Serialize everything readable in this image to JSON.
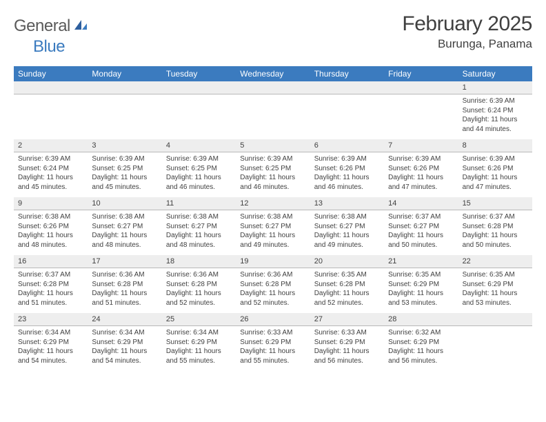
{
  "brand": {
    "part1": "General",
    "part2": "Blue"
  },
  "title": "February 2025",
  "location": "Burunga, Panama",
  "colors": {
    "header_bg": "#3b7bbf",
    "header_text": "#ffffff",
    "daynum_bg": "#eeeeee",
    "border": "#b8b8b8",
    "text": "#404040",
    "logo_gray": "#5a5a5a",
    "logo_blue": "#3b7bbf"
  },
  "day_names": [
    "Sunday",
    "Monday",
    "Tuesday",
    "Wednesday",
    "Thursday",
    "Friday",
    "Saturday"
  ],
  "weeks": [
    [
      {
        "n": "",
        "sr": "",
        "ss": "",
        "dl": ""
      },
      {
        "n": "",
        "sr": "",
        "ss": "",
        "dl": ""
      },
      {
        "n": "",
        "sr": "",
        "ss": "",
        "dl": ""
      },
      {
        "n": "",
        "sr": "",
        "ss": "",
        "dl": ""
      },
      {
        "n": "",
        "sr": "",
        "ss": "",
        "dl": ""
      },
      {
        "n": "",
        "sr": "",
        "ss": "",
        "dl": ""
      },
      {
        "n": "1",
        "sr": "Sunrise: 6:39 AM",
        "ss": "Sunset: 6:24 PM",
        "dl": "Daylight: 11 hours and 44 minutes."
      }
    ],
    [
      {
        "n": "2",
        "sr": "Sunrise: 6:39 AM",
        "ss": "Sunset: 6:24 PM",
        "dl": "Daylight: 11 hours and 45 minutes."
      },
      {
        "n": "3",
        "sr": "Sunrise: 6:39 AM",
        "ss": "Sunset: 6:25 PM",
        "dl": "Daylight: 11 hours and 45 minutes."
      },
      {
        "n": "4",
        "sr": "Sunrise: 6:39 AM",
        "ss": "Sunset: 6:25 PM",
        "dl": "Daylight: 11 hours and 46 minutes."
      },
      {
        "n": "5",
        "sr": "Sunrise: 6:39 AM",
        "ss": "Sunset: 6:25 PM",
        "dl": "Daylight: 11 hours and 46 minutes."
      },
      {
        "n": "6",
        "sr": "Sunrise: 6:39 AM",
        "ss": "Sunset: 6:26 PM",
        "dl": "Daylight: 11 hours and 46 minutes."
      },
      {
        "n": "7",
        "sr": "Sunrise: 6:39 AM",
        "ss": "Sunset: 6:26 PM",
        "dl": "Daylight: 11 hours and 47 minutes."
      },
      {
        "n": "8",
        "sr": "Sunrise: 6:39 AM",
        "ss": "Sunset: 6:26 PM",
        "dl": "Daylight: 11 hours and 47 minutes."
      }
    ],
    [
      {
        "n": "9",
        "sr": "Sunrise: 6:38 AM",
        "ss": "Sunset: 6:26 PM",
        "dl": "Daylight: 11 hours and 48 minutes."
      },
      {
        "n": "10",
        "sr": "Sunrise: 6:38 AM",
        "ss": "Sunset: 6:27 PM",
        "dl": "Daylight: 11 hours and 48 minutes."
      },
      {
        "n": "11",
        "sr": "Sunrise: 6:38 AM",
        "ss": "Sunset: 6:27 PM",
        "dl": "Daylight: 11 hours and 48 minutes."
      },
      {
        "n": "12",
        "sr": "Sunrise: 6:38 AM",
        "ss": "Sunset: 6:27 PM",
        "dl": "Daylight: 11 hours and 49 minutes."
      },
      {
        "n": "13",
        "sr": "Sunrise: 6:38 AM",
        "ss": "Sunset: 6:27 PM",
        "dl": "Daylight: 11 hours and 49 minutes."
      },
      {
        "n": "14",
        "sr": "Sunrise: 6:37 AM",
        "ss": "Sunset: 6:27 PM",
        "dl": "Daylight: 11 hours and 50 minutes."
      },
      {
        "n": "15",
        "sr": "Sunrise: 6:37 AM",
        "ss": "Sunset: 6:28 PM",
        "dl": "Daylight: 11 hours and 50 minutes."
      }
    ],
    [
      {
        "n": "16",
        "sr": "Sunrise: 6:37 AM",
        "ss": "Sunset: 6:28 PM",
        "dl": "Daylight: 11 hours and 51 minutes."
      },
      {
        "n": "17",
        "sr": "Sunrise: 6:36 AM",
        "ss": "Sunset: 6:28 PM",
        "dl": "Daylight: 11 hours and 51 minutes."
      },
      {
        "n": "18",
        "sr": "Sunrise: 6:36 AM",
        "ss": "Sunset: 6:28 PM",
        "dl": "Daylight: 11 hours and 52 minutes."
      },
      {
        "n": "19",
        "sr": "Sunrise: 6:36 AM",
        "ss": "Sunset: 6:28 PM",
        "dl": "Daylight: 11 hours and 52 minutes."
      },
      {
        "n": "20",
        "sr": "Sunrise: 6:35 AM",
        "ss": "Sunset: 6:28 PM",
        "dl": "Daylight: 11 hours and 52 minutes."
      },
      {
        "n": "21",
        "sr": "Sunrise: 6:35 AM",
        "ss": "Sunset: 6:29 PM",
        "dl": "Daylight: 11 hours and 53 minutes."
      },
      {
        "n": "22",
        "sr": "Sunrise: 6:35 AM",
        "ss": "Sunset: 6:29 PM",
        "dl": "Daylight: 11 hours and 53 minutes."
      }
    ],
    [
      {
        "n": "23",
        "sr": "Sunrise: 6:34 AM",
        "ss": "Sunset: 6:29 PM",
        "dl": "Daylight: 11 hours and 54 minutes."
      },
      {
        "n": "24",
        "sr": "Sunrise: 6:34 AM",
        "ss": "Sunset: 6:29 PM",
        "dl": "Daylight: 11 hours and 54 minutes."
      },
      {
        "n": "25",
        "sr": "Sunrise: 6:34 AM",
        "ss": "Sunset: 6:29 PM",
        "dl": "Daylight: 11 hours and 55 minutes."
      },
      {
        "n": "26",
        "sr": "Sunrise: 6:33 AM",
        "ss": "Sunset: 6:29 PM",
        "dl": "Daylight: 11 hours and 55 minutes."
      },
      {
        "n": "27",
        "sr": "Sunrise: 6:33 AM",
        "ss": "Sunset: 6:29 PM",
        "dl": "Daylight: 11 hours and 56 minutes."
      },
      {
        "n": "28",
        "sr": "Sunrise: 6:32 AM",
        "ss": "Sunset: 6:29 PM",
        "dl": "Daylight: 11 hours and 56 minutes."
      },
      {
        "n": "",
        "sr": "",
        "ss": "",
        "dl": ""
      }
    ]
  ]
}
